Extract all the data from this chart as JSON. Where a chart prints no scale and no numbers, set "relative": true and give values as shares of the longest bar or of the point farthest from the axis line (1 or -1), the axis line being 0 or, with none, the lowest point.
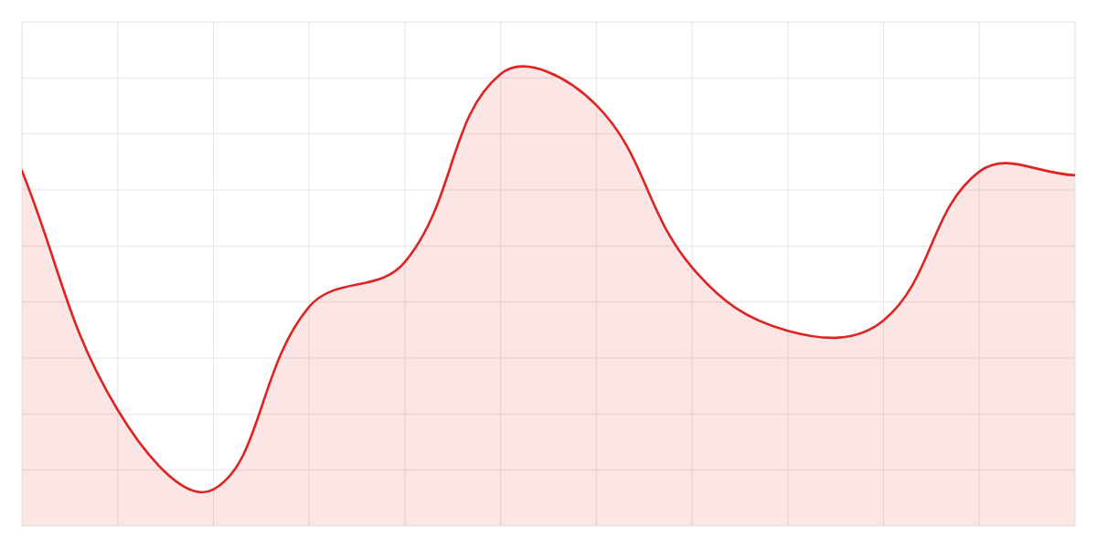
{
  "chart_data": {
    "type": "area",
    "categories": [
      null,
      null,
      null,
      null,
      null,
      null,
      null,
      null,
      null,
      null,
      null,
      null
    ],
    "values": [
      0.786,
      0.257,
      0.081,
      0.485,
      0.584,
      1.0,
      0.931,
      0.572,
      0.432,
      0.455,
      0.784,
      0.776
    ],
    "color": "#dc2626",
    "relative": true,
    "grid": true,
    "line_style": "solid"
  }
}
